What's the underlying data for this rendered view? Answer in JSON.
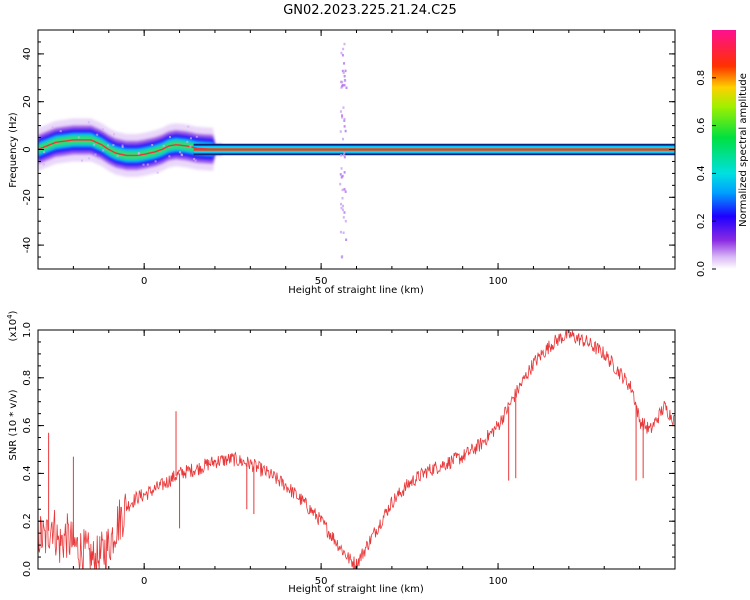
{
  "title": "GN02.2023.225.21.24.C25",
  "colors": {
    "snr_line": "#e8383a",
    "track": "#e8383a",
    "axis": "#000000"
  },
  "chart_data": [
    {
      "type": "heatmap",
      "xlabel": "Height of straight line (km)",
      "ylabel": "Frequency (Hz)",
      "xlim": [
        -30,
        150
      ],
      "ylim": [
        -50,
        50
      ],
      "xticks": [
        0,
        50,
        100
      ],
      "yticks": [
        -40,
        -20,
        0,
        20,
        40
      ],
      "grid": false,
      "dominant_track": {
        "x": [
          -30,
          -25,
          -20,
          -15,
          -12,
          -10,
          -8,
          -5,
          -2,
          0,
          3,
          5,
          7,
          9,
          12,
          15,
          20,
          150
        ],
        "y": [
          0,
          3,
          4,
          4,
          2,
          0,
          -1.5,
          -2.5,
          -2.5,
          -2,
          -1,
          0,
          1.5,
          2,
          1.5,
          0.5,
          0,
          0
        ]
      },
      "scatter_feature": {
        "x": 56,
        "y_range": [
          -45,
          45
        ]
      },
      "colorbar": {
        "label": "Normalized spectral amplitude",
        "colormap": "rainbow",
        "range": [
          0,
          1
        ],
        "ticks": [
          "0.0",
          "0.2",
          "0.4",
          "0.6",
          "0.8"
        ]
      }
    },
    {
      "type": "line",
      "xlabel": "Height of straight line (km)",
      "ylabel": "SNR (10 * v/v)",
      "y_multiplier": "(x10",
      "y_multiplier_exp": "4",
      "y_multiplier_close": ")",
      "xlim": [
        -30,
        150
      ],
      "ylim": [
        0,
        1.0
      ],
      "xticks": [
        0,
        50,
        100
      ],
      "yticks": [
        "0.0",
        "0.2",
        "0.4",
        "0.6",
        "0.8",
        "1.0"
      ],
      "grid": false,
      "series": [
        {
          "x": [
            -30,
            -28,
            -26,
            -24,
            -22,
            -20,
            -18,
            -16,
            -14,
            -12,
            -10,
            -8,
            -5,
            -2,
            0,
            5,
            10,
            15,
            20,
            25,
            30,
            35,
            40,
            45,
            50,
            55,
            58,
            60,
            65,
            70,
            75,
            80,
            85,
            90,
            95,
            100,
            103,
            106,
            110,
            115,
            118,
            120,
            125,
            130,
            135,
            138,
            140,
            143,
            147,
            150
          ],
          "values": [
            0.15,
            0.12,
            0.2,
            0.1,
            0.14,
            0.1,
            0.08,
            0.06,
            0.03,
            0.06,
            0.1,
            0.18,
            0.26,
            0.3,
            0.31,
            0.35,
            0.4,
            0.42,
            0.45,
            0.46,
            0.44,
            0.4,
            0.35,
            0.28,
            0.2,
            0.1,
            0.04,
            0.02,
            0.15,
            0.28,
            0.36,
            0.41,
            0.44,
            0.47,
            0.52,
            0.6,
            0.68,
            0.76,
            0.86,
            0.94,
            0.97,
            0.98,
            0.95,
            0.9,
            0.81,
            0.75,
            0.62,
            0.58,
            0.68,
            0.62
          ]
        }
      ],
      "spikes": [
        {
          "x": -27,
          "value": 0.57
        },
        {
          "x": -20,
          "value": 0.47
        },
        {
          "x": 9,
          "value": 0.66
        },
        {
          "x": 10,
          "value": 0.17
        },
        {
          "x": 29,
          "value": 0.25
        },
        {
          "x": 31,
          "value": 0.23
        },
        {
          "x": 103,
          "value": 0.37
        },
        {
          "x": 105,
          "value": 0.38
        },
        {
          "x": 139,
          "value": 0.37
        },
        {
          "x": 141,
          "value": 0.38
        }
      ]
    }
  ]
}
